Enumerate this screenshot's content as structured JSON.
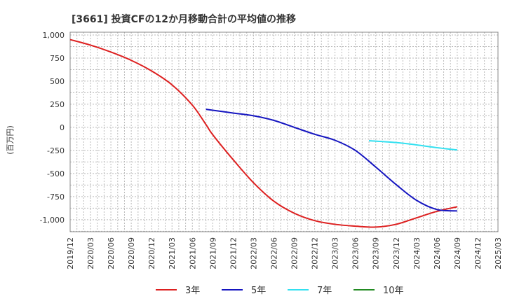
{
  "chart_data": {
    "type": "line",
    "title": "[3661]  投資CFの12か月移動合計の平均値の推移",
    "xlabel": "",
    "ylabel": "(百万円)",
    "x_ticks": [
      "2019/12",
      "2020/03",
      "2020/06",
      "2020/09",
      "2020/12",
      "2021/03",
      "2021/06",
      "2021/09",
      "2021/12",
      "2022/03",
      "2022/06",
      "2022/09",
      "2022/12",
      "2023/03",
      "2023/06",
      "2023/09",
      "2023/12",
      "2024/03",
      "2024/06",
      "2024/09",
      "2024/12",
      "2025/03"
    ],
    "y_ticks": [
      "1,000",
      "750",
      "500",
      "250",
      "0",
      "-250",
      "-500",
      "-750",
      "-1,000"
    ],
    "y_tick_values": [
      1000,
      750,
      500,
      250,
      0,
      -250,
      -500,
      -750,
      -1000
    ],
    "ylim": [
      -1130,
      1030
    ],
    "grid": true,
    "legend_position": "bottom",
    "series": [
      {
        "name": "3年",
        "color": "#dd2020",
        "points": [
          [
            "2019/12",
            950
          ],
          [
            "2020/03",
            890
          ],
          [
            "2020/06",
            815
          ],
          [
            "2020/09",
            725
          ],
          [
            "2020/12",
            610
          ],
          [
            "2021/03",
            460
          ],
          [
            "2021/06",
            240
          ],
          [
            "2021/08",
            30
          ],
          [
            "2021/09",
            -80
          ],
          [
            "2021/12",
            -350
          ],
          [
            "2022/03",
            -600
          ],
          [
            "2022/06",
            -800
          ],
          [
            "2022/09",
            -930
          ],
          [
            "2022/12",
            -1010
          ],
          [
            "2023/03",
            -1050
          ],
          [
            "2023/06",
            -1070
          ],
          [
            "2023/09",
            -1080
          ],
          [
            "2023/12",
            -1050
          ],
          [
            "2024/03",
            -980
          ],
          [
            "2024/06",
            -910
          ],
          [
            "2024/09",
            -860
          ]
        ]
      },
      {
        "name": "5年",
        "color": "#1515c0",
        "points": [
          [
            "2021/08",
            195
          ],
          [
            "2021/09",
            185
          ],
          [
            "2021/12",
            155
          ],
          [
            "2022/03",
            125
          ],
          [
            "2022/06",
            75
          ],
          [
            "2022/09",
            0
          ],
          [
            "2022/12",
            -75
          ],
          [
            "2023/03",
            -140
          ],
          [
            "2023/06",
            -250
          ],
          [
            "2023/09",
            -430
          ],
          [
            "2023/12",
            -620
          ],
          [
            "2024/03",
            -790
          ],
          [
            "2024/06",
            -890
          ],
          [
            "2024/09",
            -905
          ]
        ]
      },
      {
        "name": "7年",
        "color": "#33e0f0",
        "points": [
          [
            "2023/08",
            -145
          ],
          [
            "2023/12",
            -165
          ],
          [
            "2024/03",
            -190
          ],
          [
            "2024/06",
            -220
          ],
          [
            "2024/09",
            -245
          ]
        ]
      },
      {
        "name": "10年",
        "color": "#228b22",
        "points": []
      }
    ]
  }
}
